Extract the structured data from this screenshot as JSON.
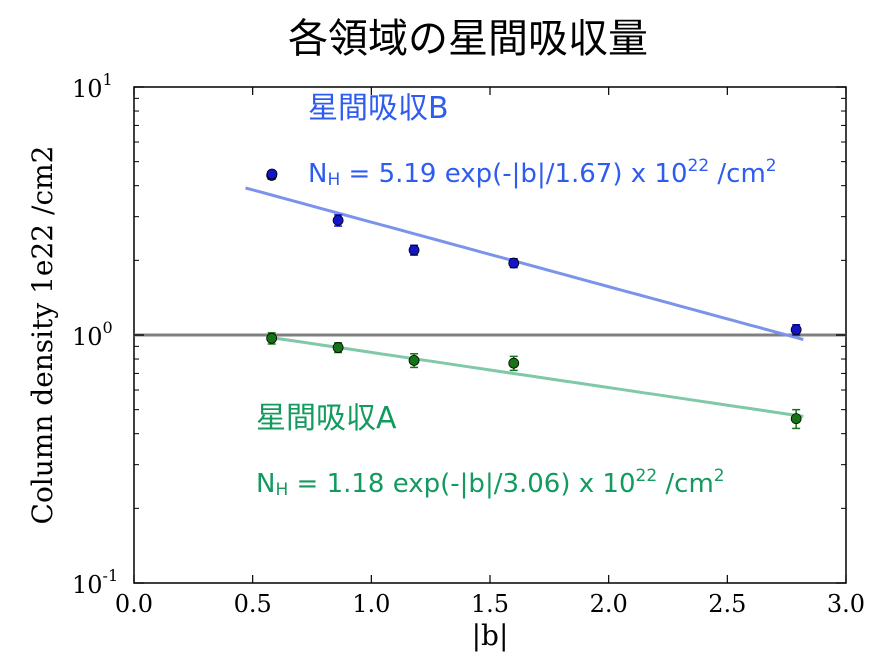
{
  "chart_data": {
    "type": "scatter",
    "title": "各領域の星間吸収量",
    "xlabel": "|b|",
    "ylabel": "Column density 1e22 /cm2",
    "xlim": [
      0.0,
      3.0
    ],
    "ylim": [
      0.1,
      10
    ],
    "yscale": "log",
    "x_ticks": [
      "0.0",
      "0.5",
      "1.0",
      "1.5",
      "2.0",
      "2.5",
      "3.0"
    ],
    "y_ticks": [
      {
        "base": "10",
        "exp": "-1",
        "value": 0.1
      },
      {
        "base": "10",
        "exp": "0",
        "value": 1
      },
      {
        "base": "10",
        "exp": "1",
        "value": 10
      }
    ],
    "reference_line": {
      "y": 1.0,
      "color": "#808080"
    },
    "series": [
      {
        "name": "星間吸収B",
        "color": "#1515c8",
        "fit_color": "#7b93ea",
        "label_color": "#2f5cf0",
        "fit_label": {
          "prefix": "N",
          "sub": "H",
          "mid": " = 5.19 exp(-|b|/1.67) x 10",
          "sup": "22",
          "suffix": " /cm",
          "sup2": "2"
        },
        "fit": {
          "a": 5.19,
          "scale": 1.67,
          "x_range": [
            0.47,
            2.82
          ]
        },
        "points": [
          {
            "x": 0.58,
            "y": 4.4,
            "err": 0.15
          },
          {
            "x": 0.86,
            "y": 2.9,
            "err": 0.15
          },
          {
            "x": 1.18,
            "y": 2.2,
            "err": 0.1
          },
          {
            "x": 1.6,
            "y": 1.95,
            "err": 0.08
          },
          {
            "x": 2.79,
            "y": 1.05,
            "err": 0.05
          }
        ]
      },
      {
        "name": "星間吸収A",
        "color": "#167416",
        "fit_color": "#7fc8a8",
        "label_color": "#139a5e",
        "fit_label": {
          "prefix": "N",
          "sub": "H",
          "mid": " = 1.18 exp(-|b|/3.06) x 10",
          "sup": "22",
          "suffix": " /cm",
          "sup2": "2"
        },
        "fit": {
          "a": 1.18,
          "scale": 3.06,
          "x_range": [
            0.58,
            2.82
          ]
        },
        "points": [
          {
            "x": 0.58,
            "y": 0.97,
            "err": 0.05
          },
          {
            "x": 0.86,
            "y": 0.89,
            "err": 0.04
          },
          {
            "x": 1.18,
            "y": 0.79,
            "err": 0.05
          },
          {
            "x": 1.6,
            "y": 0.77,
            "err": 0.05
          },
          {
            "x": 2.79,
            "y": 0.46,
            "err": 0.04
          }
        ]
      }
    ]
  }
}
